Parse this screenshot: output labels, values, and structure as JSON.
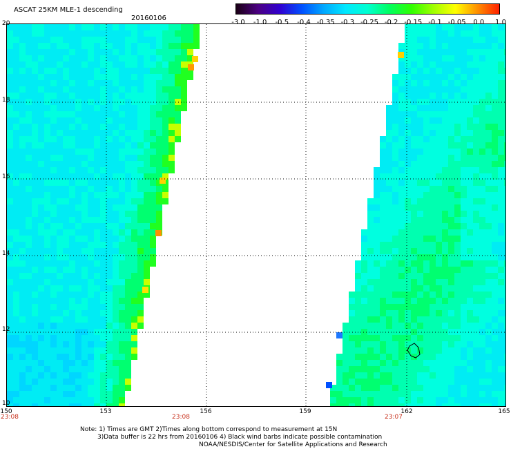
{
  "header": {
    "title": "ASCAT 25KM MLE-1 descending",
    "date": "20160106"
  },
  "colorbar": {
    "labels": [
      "-3.0",
      "-1.0",
      "-0.5",
      "-0.4",
      "-0.35",
      "-0.3",
      "-0.25",
      "-0.2",
      "-0.15",
      "-0.1",
      "-0.05",
      "0.0",
      "1.0"
    ],
    "colors": [
      "#1a0014",
      "#4b0082",
      "#3000d0",
      "#0050ff",
      "#00a8ff",
      "#00e8ff",
      "#00ffd0",
      "#00ff60",
      "#30ff00",
      "#a0ff00",
      "#ffff00",
      "#ff9000",
      "#ff2000"
    ]
  },
  "map": {
    "lat_labels": [
      "20",
      "18",
      "16",
      "14",
      "12",
      "10"
    ],
    "lon_labels": [
      "150",
      "153",
      "156",
      "159",
      "162",
      "165"
    ],
    "lat_range": [
      10,
      20
    ],
    "lon_range": [
      150,
      165
    ],
    "grid": true,
    "time_labels": [
      {
        "text": "23:08",
        "lon": 150
      },
      {
        "text": "23:08",
        "lon": 155.2
      },
      {
        "text": "23:07",
        "lon": 161.6
      }
    ]
  },
  "notes": [
    "Note: 1) Times are GMT 2)Times along bottom correspond to measurement at 15N",
    "3)Data buffer is 22 hrs from 20160106 4) Black wind barbs indicate possible contamination",
    "NOAA/NESDIS/Center for Satellite Applications and Research"
  ]
}
